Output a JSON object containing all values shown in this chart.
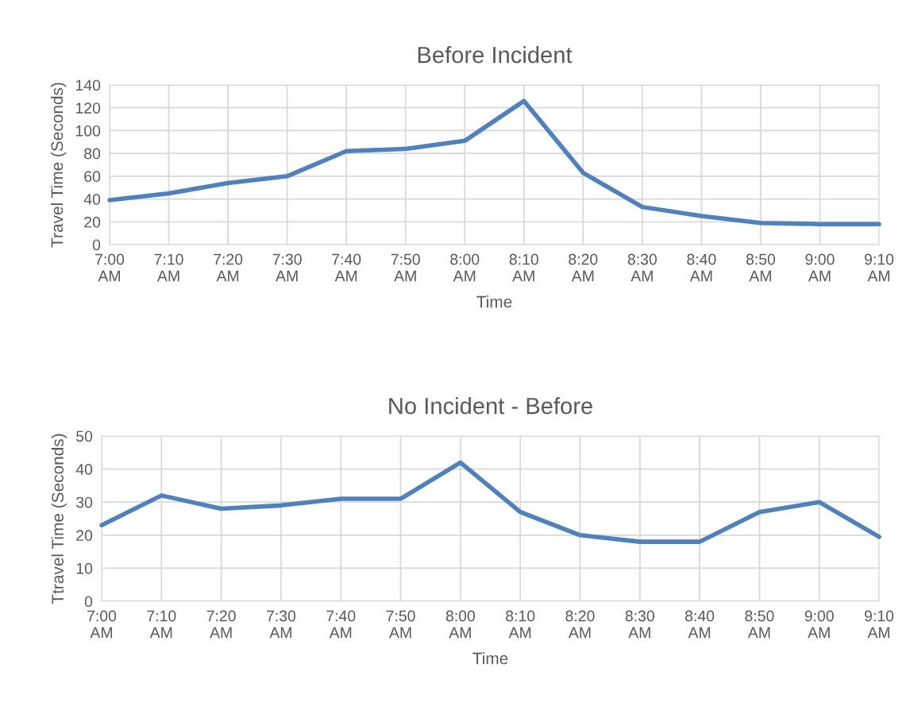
{
  "chart_data": [
    {
      "type": "line",
      "title": "Before Incident",
      "xlabel": "Time",
      "ylabel": "Travel Time (Seconds)",
      "categories": [
        "7:00 AM",
        "7:10 AM",
        "7:20 AM",
        "7:30 AM",
        "7:40 AM",
        "7:50 AM",
        "8:00 AM",
        "8:10 AM",
        "8:20 AM",
        "8:30 AM",
        "8:40 AM",
        "8:50 AM",
        "9:00 AM",
        "9:10 AM"
      ],
      "series": [
        {
          "color": "#4f81bd",
          "values": [
            39,
            45,
            54,
            60,
            82,
            84,
            91,
            126,
            63,
            33,
            25,
            19,
            18,
            18
          ]
        }
      ],
      "ylim": [
        0,
        140
      ],
      "yticks": [
        0,
        20,
        40,
        60,
        80,
        100,
        120,
        140
      ],
      "grid": true,
      "legend": false,
      "marker": "none",
      "line_style": "solid"
    },
    {
      "type": "line",
      "title": "No Incident - Before",
      "xlabel": "Time",
      "ylabel": "Ttravel Time (Seconds)",
      "categories": [
        "7:00 AM",
        "7:10 AM",
        "7:20 AM",
        "7:30 AM",
        "7:40 AM",
        "7:50 AM",
        "8:00 AM",
        "8:10 AM",
        "8:20 AM",
        "8:30 AM",
        "8:40 AM",
        "8:50 AM",
        "9:00 AM",
        "9:10 AM"
      ],
      "series": [
        {
          "color": "#4f81bd",
          "values": [
            23,
            32,
            28,
            29,
            31,
            31,
            42,
            27,
            20,
            18,
            18,
            27,
            30,
            19.5
          ]
        }
      ],
      "ylim": [
        0,
        50
      ],
      "yticks": [
        0,
        10,
        20,
        30,
        40,
        50
      ],
      "grid": true,
      "legend": false,
      "marker": "none",
      "line_style": "solid"
    }
  ]
}
